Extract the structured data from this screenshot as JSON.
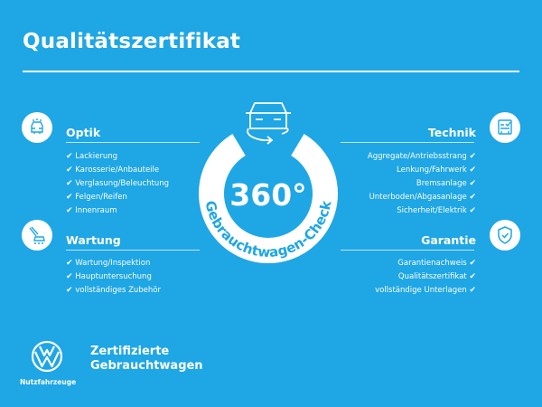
{
  "header": {
    "title": "Qualitätszertifikat"
  },
  "center": {
    "degrees": "360°",
    "arc_text": "Gebrauchtwagen-Check"
  },
  "colors": {
    "background": "#1ea6e5",
    "foreground": "#ffffff"
  },
  "check_glyph": "✔",
  "sections": {
    "optik": {
      "title": "Optik",
      "icon": "car-front-icon",
      "items": [
        "Lackierung",
        "Karosserie/Anbauteile",
        "Verglasung/Beleuchtung",
        "Felgen/Reifen",
        "Innenraum"
      ]
    },
    "wartung": {
      "title": "Wartung",
      "icon": "service-tools-icon",
      "items": [
        "Wartung/Inspektion",
        "Hauptuntersuchung",
        "vollständiges Zubehör"
      ]
    },
    "technik": {
      "title": "Technik",
      "icon": "checklist-car-icon",
      "items": [
        "Aggregate/Antriebsstrang",
        "Lenkung/Fahrwerk",
        "Bremsanlage",
        "Unterboden/Abgasanlage",
        "Sicherheit/Elektrik"
      ]
    },
    "garantie": {
      "title": "Garantie",
      "icon": "shield-check-icon",
      "items": [
        "Garantienachweis",
        "Qualitätszertifikat",
        "vollständige Unterlagen"
      ]
    }
  },
  "footer": {
    "line1": "Zertifizierte",
    "line2": "Gebrauchtwagen",
    "brand": "Nutzfahrzeuge",
    "logo": "VW"
  }
}
